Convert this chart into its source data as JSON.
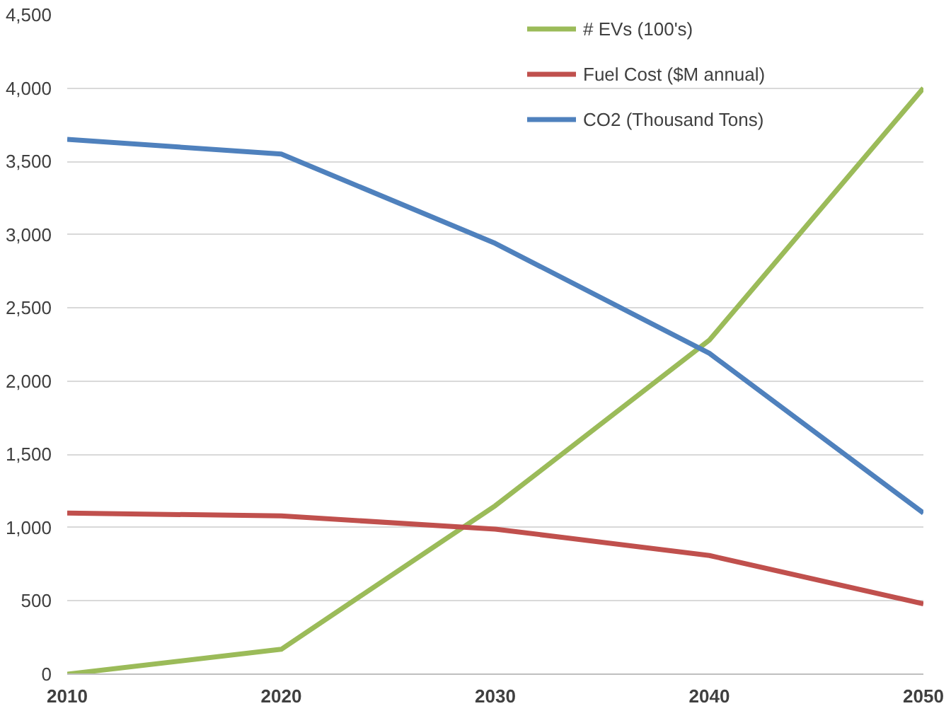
{
  "chart_data": {
    "type": "line",
    "x": [
      2010,
      2020,
      2030,
      2040,
      2050
    ],
    "series": [
      {
        "name": "# EVs (100's)",
        "color": "#9bbb59",
        "values": [
          0,
          170,
          1150,
          2280,
          4000
        ]
      },
      {
        "name": "Fuel Cost ($M annual)",
        "color": "#c0504d",
        "values": [
          1100,
          1080,
          990,
          810,
          480
        ]
      },
      {
        "name": "CO2 (Thousand Tons)",
        "color": "#4f81bd",
        "values": [
          3650,
          3550,
          2940,
          2190,
          1100
        ]
      }
    ],
    "xlim": [
      2010,
      2050
    ],
    "xticks": [
      2010,
      2020,
      2030,
      2040,
      2050
    ],
    "ylim": [
      0,
      4500
    ],
    "yticks": [
      0,
      500,
      {
        "value": 1000,
        "label": "1,000"
      },
      {
        "value": 1500,
        "label": "1,500"
      },
      {
        "value": 2000,
        "label": "2,000"
      },
      {
        "value": 2500,
        "label": "2,500"
      },
      {
        "value": 3000,
        "label": "3,000"
      },
      {
        "value": 3500,
        "label": "3,500"
      },
      {
        "value": 4000,
        "label": "4,000"
      },
      {
        "value": 4500,
        "label": "4,500"
      }
    ],
    "grid": "y",
    "legend": "top right",
    "marker": "none",
    "line_style": "solid"
  }
}
